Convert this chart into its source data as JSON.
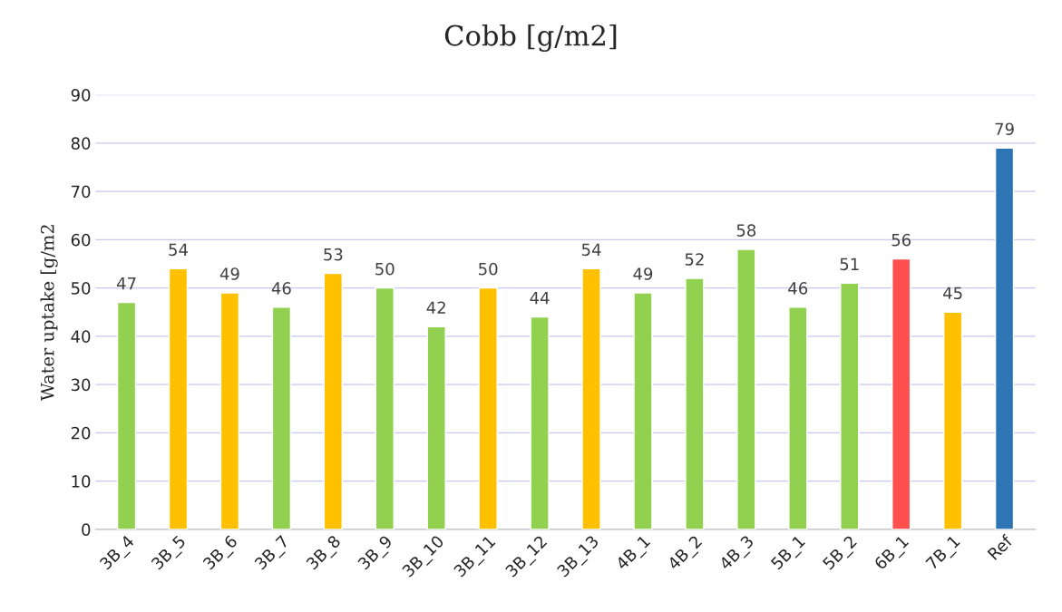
{
  "chart_data": {
    "type": "bar",
    "title": "Cobb [g/m2]",
    "ylabel": "Water uptake [g/m2",
    "categories": [
      "3B_4",
      "3B_5",
      "3B_6",
      "3B_7",
      "3B_8",
      "3B_9",
      "3B_10",
      "3B_11",
      "3B_12",
      "3B_13",
      "4B_1",
      "4B_2",
      "4B_3",
      "5B_1",
      "5B_2",
      "6B_1",
      "7B_1",
      "Ref"
    ],
    "values": [
      47,
      54,
      49,
      46,
      53,
      50,
      42,
      50,
      44,
      54,
      49,
      52,
      58,
      46,
      51,
      56,
      45,
      79
    ],
    "colors": [
      "#92d050",
      "#ffc000",
      "#ffc000",
      "#92d050",
      "#ffc000",
      "#92d050",
      "#92d050",
      "#ffc000",
      "#92d050",
      "#ffc000",
      "#92d050",
      "#92d050",
      "#92d050",
      "#92d050",
      "#92d050",
      "#ff5050",
      "#ffc000",
      "#2e75b6"
    ],
    "ylim": [
      0,
      90
    ],
    "yticks": [
      0,
      10,
      20,
      30,
      40,
      50,
      60,
      70,
      80,
      90
    ],
    "grid": "y",
    "data_labels": true,
    "legend": false
  }
}
